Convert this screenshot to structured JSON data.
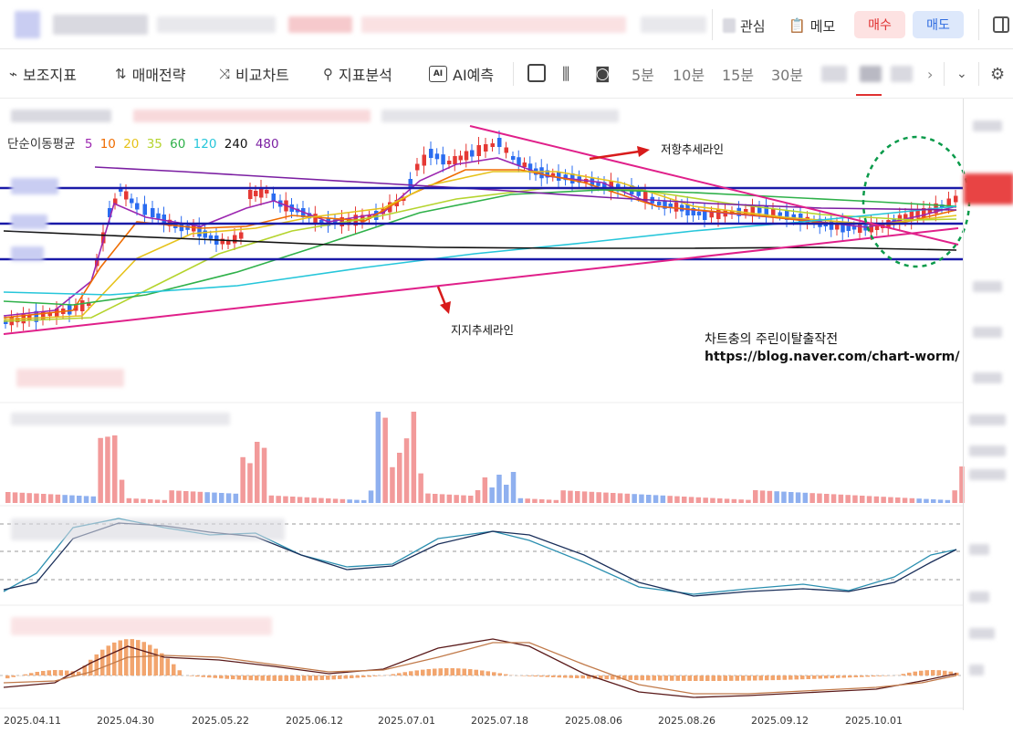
{
  "header": {
    "watch_label": "관심",
    "memo_label": "메모",
    "buy_label": "매수",
    "sell_label": "매도"
  },
  "toolbar": {
    "items": [
      {
        "icon": "indicator-icon",
        "glyph": "⌁",
        "label": "보조지표"
      },
      {
        "icon": "strategy-icon",
        "glyph": "⇅",
        "label": "매매전략"
      },
      {
        "icon": "compare-icon",
        "glyph": "⤨",
        "label": "비교차트"
      },
      {
        "icon": "analysis-icon",
        "glyph": "⚲",
        "label": "지표분석"
      },
      {
        "icon": "ai-icon",
        "glyph": "AI",
        "label": "AI예측"
      }
    ],
    "timeframes": [
      "5분",
      "10분",
      "15분",
      "30분"
    ]
  },
  "chart": {
    "ma_title": "단순이동평균",
    "ma_periods": [
      {
        "label": "5",
        "color": "#9c27b0"
      },
      {
        "label": "10",
        "color": "#ef6c00"
      },
      {
        "label": "20",
        "color": "#e6c21a"
      },
      {
        "label": "35",
        "color": "#b5d42e"
      },
      {
        "label": "60",
        "color": "#2fb14a"
      },
      {
        "label": "120",
        "color": "#26c6da"
      },
      {
        "label": "240",
        "color": "#111111"
      },
      {
        "label": "480",
        "color": "#7b1fa2"
      }
    ],
    "resistance_label": "저항추세라인",
    "support_label": "지지추세라인",
    "brand_line1": "차트충의 주린이탈출작전",
    "brand_line2": "https://blog.naver.com/chart-worm/",
    "x_axis": [
      "2025.04.11",
      "2025.04.30",
      "2025.05.22",
      "2025.06.12",
      "2025.07.01",
      "2025.07.18",
      "2025.08.06",
      "2025.08.26",
      "2025.09.12",
      "2025.10.01"
    ],
    "colors": {
      "up": "#e53935",
      "down": "#2a6cf0",
      "hline": "#1a1aa8",
      "trend": "#e0208a",
      "arrow": "#d81b1b",
      "circle": "#0a9a4a"
    }
  }
}
